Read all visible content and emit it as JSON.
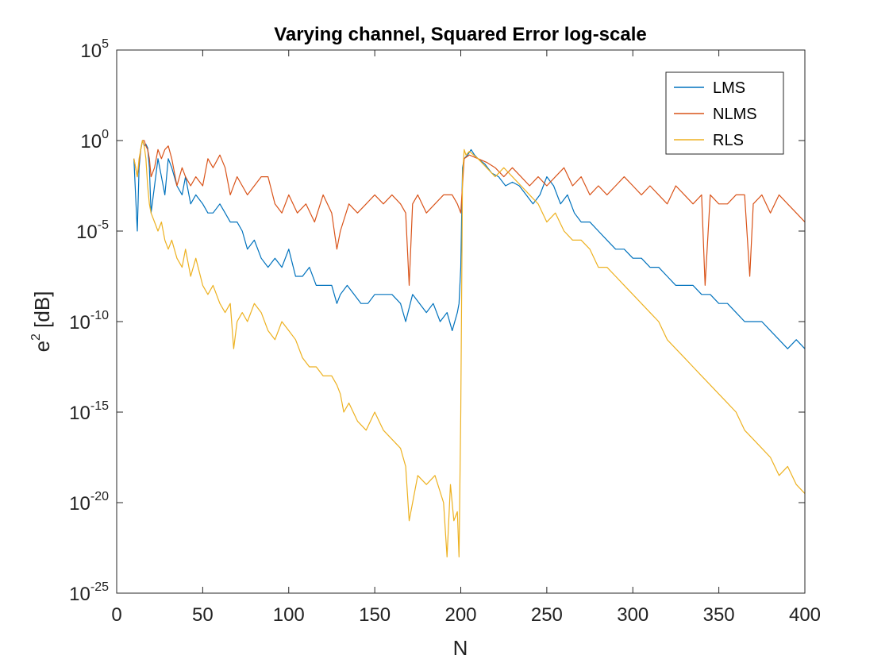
{
  "chart_data": {
    "type": "line",
    "title": "Varying channel, Squared Error log-scale",
    "xlabel": "N",
    "ylabel_base": "e",
    "ylabel_sup": "2",
    "ylabel_suffix": " [dB]",
    "xlim": [
      0,
      400
    ],
    "ylim_exponent": [
      -25,
      5
    ],
    "yscale": "log",
    "grid": false,
    "legend_position": "top-right",
    "x_ticks": [
      0,
      50,
      100,
      150,
      200,
      250,
      300,
      350,
      400
    ],
    "x_tick_labels": [
      "0",
      "50",
      "100",
      "150",
      "200",
      "250",
      "300",
      "350",
      "400"
    ],
    "y_ticks": [
      {
        "exp": 5,
        "base": "10",
        "sup": "5"
      },
      {
        "exp": 0,
        "base": "10",
        "sup": "0"
      },
      {
        "exp": -5,
        "base": "10",
        "sup": "-5"
      },
      {
        "exp": -10,
        "base": "10",
        "sup": "-10"
      },
      {
        "exp": -15,
        "base": "10",
        "sup": "-15"
      },
      {
        "exp": -20,
        "base": "10",
        "sup": "-20"
      },
      {
        "exp": -25,
        "base": "10",
        "sup": "-25"
      }
    ],
    "series_note": "series values are log10(e^2)",
    "series": [
      {
        "name": "LMS",
        "color": "#0072BD",
        "x": [
          10,
          11,
          12,
          13,
          14,
          15,
          16,
          17,
          18,
          19,
          20,
          22,
          24,
          26,
          28,
          30,
          32,
          35,
          38,
          40,
          43,
          46,
          50,
          53,
          56,
          60,
          63,
          66,
          70,
          73,
          76,
          80,
          84,
          88,
          92,
          96,
          100,
          104,
          108,
          112,
          116,
          120,
          125,
          128,
          130,
          134,
          138,
          142,
          146,
          150,
          155,
          160,
          165,
          168,
          172,
          176,
          180,
          184,
          188,
          192,
          195,
          198,
          199,
          200,
          201,
          202,
          204,
          206,
          208,
          210,
          214,
          218,
          222,
          226,
          230,
          234,
          238,
          242,
          246,
          250,
          254,
          258,
          262,
          266,
          270,
          275,
          280,
          285,
          290,
          295,
          300,
          305,
          310,
          315,
          320,
          325,
          330,
          335,
          340,
          345,
          350,
          355,
          360,
          365,
          370,
          375,
          380,
          385,
          390,
          395,
          400
        ],
        "y": [
          -1.0,
          -3.0,
          -5.0,
          -1.5,
          -0.5,
          0.0,
          -0.3,
          -0.2,
          -0.4,
          -1.5,
          -4.0,
          -2.5,
          -1.0,
          -2.0,
          -3.0,
          -1.0,
          -1.5,
          -2.5,
          -3.0,
          -2.0,
          -3.5,
          -3.0,
          -3.5,
          -4.0,
          -4.0,
          -3.5,
          -4.0,
          -4.5,
          -4.5,
          -5.0,
          -6.0,
          -5.5,
          -6.5,
          -7.0,
          -6.5,
          -7.0,
          -6.0,
          -7.5,
          -7.5,
          -7.0,
          -8.0,
          -8.0,
          -8.0,
          -9.0,
          -8.5,
          -8.0,
          -8.5,
          -9.0,
          -9.0,
          -8.5,
          -8.5,
          -8.5,
          -9.0,
          -10.0,
          -8.5,
          -9.0,
          -9.5,
          -9.0,
          -10.0,
          -9.5,
          -10.5,
          -9.5,
          -9.0,
          -7.0,
          -1.5,
          -1.0,
          -0.8,
          -0.5,
          -0.8,
          -1.0,
          -1.3,
          -1.8,
          -2.0,
          -2.5,
          -2.3,
          -2.5,
          -3.0,
          -3.5,
          -3.0,
          -2.0,
          -2.5,
          -3.5,
          -3.0,
          -4.0,
          -4.5,
          -4.5,
          -5.0,
          -5.5,
          -6.0,
          -6.0,
          -6.5,
          -6.5,
          -7.0,
          -7.0,
          -7.5,
          -8.0,
          -8.0,
          -8.0,
          -8.5,
          -8.5,
          -9.0,
          -9.0,
          -9.5,
          -10.0,
          -10.0,
          -10.0,
          -10.5,
          -11.0,
          -11.5,
          -11.0,
          -11.5
        ]
      },
      {
        "name": "NLMS",
        "color": "#D95319",
        "x": [
          10,
          12,
          14,
          15,
          16,
          17,
          18,
          19,
          20,
          22,
          24,
          26,
          28,
          30,
          32,
          35,
          38,
          40,
          43,
          46,
          50,
          53,
          56,
          60,
          63,
          66,
          70,
          73,
          76,
          80,
          84,
          88,
          92,
          96,
          100,
          105,
          110,
          115,
          120,
          125,
          128,
          130,
          135,
          140,
          145,
          150,
          155,
          160,
          165,
          168,
          170,
          172,
          175,
          180,
          185,
          190,
          195,
          198,
          200,
          202,
          205,
          210,
          215,
          220,
          225,
          230,
          235,
          240,
          245,
          250,
          255,
          260,
          265,
          270,
          275,
          280,
          285,
          290,
          295,
          300,
          305,
          310,
          315,
          320,
          325,
          330,
          335,
          340,
          342,
          345,
          350,
          355,
          360,
          365,
          368,
          370,
          375,
          380,
          385,
          390,
          395,
          400
        ],
        "y": [
          -1.0,
          -2.0,
          -0.5,
          0.0,
          0.0,
          -0.3,
          -0.5,
          -1.0,
          -2.0,
          -1.5,
          -0.5,
          -1.0,
          -0.5,
          -0.3,
          -1.0,
          -2.5,
          -1.5,
          -2.0,
          -2.5,
          -2.0,
          -2.5,
          -1.0,
          -1.5,
          -0.8,
          -1.5,
          -3.0,
          -2.0,
          -2.5,
          -3.0,
          -2.5,
          -2.0,
          -2.0,
          -3.5,
          -4.0,
          -3.0,
          -4.0,
          -3.5,
          -4.5,
          -3.0,
          -4.0,
          -6.0,
          -5.0,
          -3.5,
          -4.0,
          -3.5,
          -3.0,
          -3.5,
          -3.0,
          -3.5,
          -4.0,
          -8.0,
          -3.5,
          -3.0,
          -4.0,
          -3.5,
          -3.0,
          -3.0,
          -3.5,
          -4.0,
          -1.0,
          -0.8,
          -1.0,
          -1.2,
          -1.5,
          -2.0,
          -1.5,
          -2.0,
          -2.5,
          -2.0,
          -2.5,
          -2.0,
          -1.5,
          -2.5,
          -2.0,
          -3.0,
          -2.5,
          -3.0,
          -2.5,
          -2.0,
          -2.5,
          -3.0,
          -2.5,
          -3.0,
          -3.5,
          -2.5,
          -3.0,
          -3.5,
          -3.0,
          -8.0,
          -3.0,
          -3.5,
          -3.5,
          -3.0,
          -3.0,
          -7.5,
          -3.5,
          -3.0,
          -4.0,
          -3.0,
          -3.5,
          -4.0,
          -4.5
        ]
      },
      {
        "name": "RLS",
        "color": "#EDB120",
        "x": [
          10,
          12,
          13,
          14,
          15,
          16,
          17,
          18,
          19,
          20,
          22,
          24,
          26,
          28,
          30,
          32,
          35,
          38,
          40,
          43,
          46,
          50,
          53,
          56,
          60,
          63,
          66,
          68,
          70,
          73,
          76,
          80,
          84,
          88,
          92,
          96,
          100,
          104,
          108,
          112,
          116,
          120,
          125,
          128,
          130,
          132,
          135,
          140,
          145,
          150,
          155,
          160,
          165,
          168,
          170,
          175,
          180,
          185,
          190,
          192,
          194,
          196,
          198,
          199,
          200,
          201,
          202,
          203,
          205,
          210,
          215,
          220,
          225,
          230,
          235,
          240,
          245,
          250,
          255,
          260,
          265,
          270,
          275,
          280,
          285,
          290,
          295,
          300,
          305,
          310,
          315,
          320,
          325,
          330,
          335,
          340,
          345,
          350,
          355,
          360,
          365,
          370,
          375,
          380,
          385,
          390,
          395,
          400
        ],
        "y": [
          -1.0,
          -2.0,
          -1.0,
          -0.5,
          0.0,
          -0.3,
          -1.0,
          -2.5,
          -3.5,
          -4.0,
          -4.5,
          -5.0,
          -4.5,
          -5.5,
          -6.0,
          -5.5,
          -6.5,
          -7.0,
          -6.0,
          -7.5,
          -6.5,
          -8.0,
          -8.5,
          -8.0,
          -9.0,
          -9.5,
          -9.0,
          -11.5,
          -10.0,
          -9.5,
          -10.0,
          -9.0,
          -9.5,
          -10.5,
          -11.0,
          -10.0,
          -10.5,
          -11.0,
          -12.0,
          -12.5,
          -12.5,
          -13.0,
          -13.0,
          -13.5,
          -14.0,
          -15.0,
          -14.5,
          -15.5,
          -16.0,
          -15.0,
          -16.0,
          -16.5,
          -17.0,
          -18.0,
          -21.0,
          -18.5,
          -19.0,
          -18.5,
          -20.0,
          -23.0,
          -19.0,
          -21.0,
          -20.5,
          -23.0,
          -15.0,
          -2.0,
          -0.5,
          -0.8,
          -0.6,
          -1.0,
          -1.5,
          -2.0,
          -1.5,
          -2.0,
          -2.5,
          -3.0,
          -3.5,
          -4.5,
          -4.0,
          -5.0,
          -5.5,
          -5.5,
          -6.0,
          -7.0,
          -7.0,
          -7.5,
          -8.0,
          -8.5,
          -9.0,
          -9.5,
          -10.0,
          -11.0,
          -11.5,
          -12.0,
          -12.5,
          -13.0,
          -13.5,
          -14.0,
          -14.5,
          -15.0,
          -16.0,
          -16.5,
          -17.0,
          -17.5,
          -18.5,
          -18.0,
          -19.0,
          -19.5
        ]
      }
    ]
  }
}
